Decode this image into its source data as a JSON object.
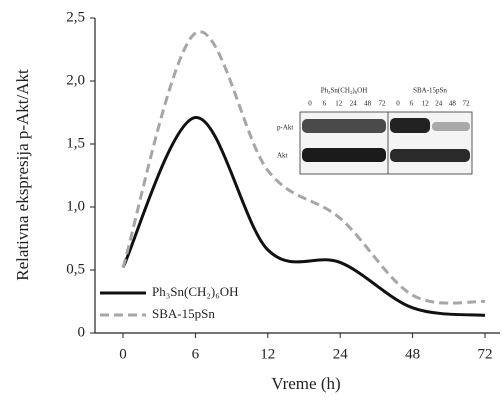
{
  "chart_data": {
    "type": "line",
    "y_label": "Relativna ekspresija p-Akt/Akt",
    "x_label": "Vreme (h)",
    "categories": [
      "0",
      "6",
      "12",
      "24",
      "48",
      "72"
    ],
    "series": [
      {
        "name": "Ph₃Sn(CH₂)₆OH",
        "color": "#111111",
        "dash": false,
        "values": [
          0.52,
          1.71,
          0.66,
          0.56,
          0.2,
          0.14
        ]
      },
      {
        "name": "SBA-15pSn",
        "color": "#a6a6a6",
        "dash": true,
        "values": [
          0.52,
          2.38,
          1.29,
          0.91,
          0.3,
          0.25
        ]
      }
    ],
    "ylim": [
      0,
      2.5
    ],
    "yticks": [
      0,
      {
        "value": 0.5,
        "label": "0,5"
      },
      {
        "value": 1,
        "label": "1,0"
      },
      {
        "value": 1.5,
        "label": "1,5"
      },
      {
        "value": 2,
        "label": "2,0"
      },
      {
        "value": 2.5,
        "label": "2,5"
      }
    ],
    "legend": "lower left",
    "inset": {
      "groups": [
        "Ph₃Sn(CH₂)₆OH",
        "SBA-15pSn"
      ],
      "lanes": [
        "0",
        "6",
        "12",
        "24",
        "48",
        "72"
      ],
      "rows": [
        "p-Akt",
        "Akt"
      ]
    }
  }
}
